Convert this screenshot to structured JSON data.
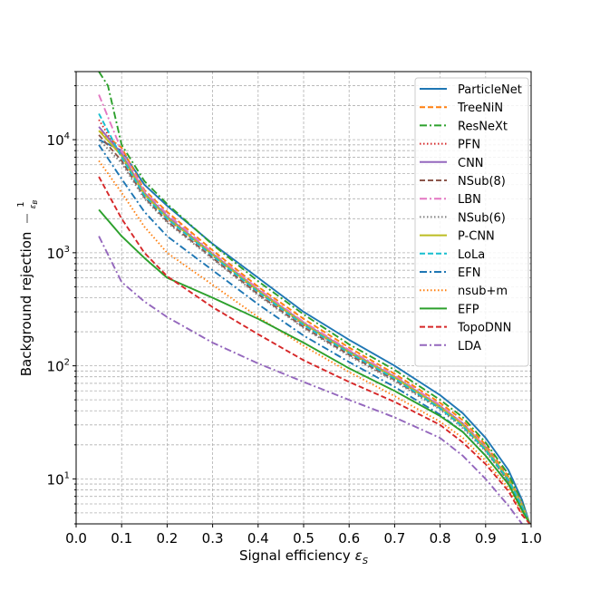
{
  "chart_data": {
    "type": "line",
    "title": "",
    "xlabel": "Signal efficiency",
    "xlabel_symbol": "εS",
    "ylabel": "Background rejection",
    "ylabel_symbol": "1/εB",
    "xlim": [
      0.0,
      1.0
    ],
    "ylim": [
      4,
      40000
    ],
    "yscale": "log",
    "grid": true,
    "legend_position": "top-right",
    "x_ticks": [
      "0.0",
      "0.1",
      "0.2",
      "0.3",
      "0.4",
      "0.5",
      "0.6",
      "0.7",
      "0.8",
      "0.9",
      "1.0"
    ],
    "y_tick_exponents": [
      "1",
      "2",
      "3",
      "4"
    ],
    "y_tick_base": "10",
    "series": [
      {
        "name": "ParticleNet",
        "color": "#1f77b4",
        "dash": "solid",
        "points": [
          [
            0.05,
            10000
          ],
          [
            0.1,
            8000
          ],
          [
            0.15,
            4000
          ],
          [
            0.2,
            2600
          ],
          [
            0.3,
            1200
          ],
          [
            0.4,
            600
          ],
          [
            0.5,
            300
          ],
          [
            0.6,
            170
          ],
          [
            0.7,
            100
          ],
          [
            0.8,
            55
          ],
          [
            0.85,
            38
          ],
          [
            0.9,
            23
          ],
          [
            0.95,
            12
          ],
          [
            0.98,
            6.5
          ],
          [
            0.997,
            4
          ]
        ]
      },
      {
        "name": "TreeNiN",
        "color": "#ff7f0e",
        "dash": "dashed",
        "points": [
          [
            0.05,
            12000
          ],
          [
            0.1,
            8500
          ],
          [
            0.15,
            3600
          ],
          [
            0.2,
            2300
          ],
          [
            0.3,
            1050
          ],
          [
            0.4,
            500
          ],
          [
            0.5,
            260
          ],
          [
            0.6,
            145
          ],
          [
            0.7,
            85
          ],
          [
            0.8,
            47
          ],
          [
            0.85,
            33
          ],
          [
            0.9,
            20
          ],
          [
            0.95,
            10.5
          ],
          [
            0.98,
            6
          ],
          [
            0.997,
            4
          ]
        ]
      },
      {
        "name": "ResNeXt",
        "color": "#2ca02c",
        "dash": "dashdot",
        "points": [
          [
            0.05,
            40000
          ],
          [
            0.07,
            30000
          ],
          [
            0.1,
            9000
          ],
          [
            0.15,
            4300
          ],
          [
            0.2,
            2700
          ],
          [
            0.3,
            1180
          ],
          [
            0.4,
            560
          ],
          [
            0.5,
            285
          ],
          [
            0.6,
            155
          ],
          [
            0.7,
            92
          ],
          [
            0.8,
            50
          ],
          [
            0.85,
            35
          ],
          [
            0.9,
            21
          ],
          [
            0.95,
            11
          ],
          [
            0.98,
            6.2
          ],
          [
            0.997,
            4
          ]
        ]
      },
      {
        "name": "PFN",
        "color": "#d62728",
        "dash": "dotted",
        "points": [
          [
            0.05,
            15000
          ],
          [
            0.1,
            7000
          ],
          [
            0.15,
            3300
          ],
          [
            0.2,
            2000
          ],
          [
            0.3,
            950
          ],
          [
            0.4,
            450
          ],
          [
            0.5,
            230
          ],
          [
            0.6,
            130
          ],
          [
            0.7,
            78
          ],
          [
            0.8,
            43
          ],
          [
            0.85,
            30
          ],
          [
            0.9,
            18
          ],
          [
            0.95,
            10
          ],
          [
            0.98,
            5.8
          ],
          [
            0.997,
            4
          ]
        ]
      },
      {
        "name": "CNN",
        "color": "#9467bd",
        "dash": "solid",
        "points": [
          [
            0.05,
            13000
          ],
          [
            0.1,
            7500
          ],
          [
            0.15,
            3400
          ],
          [
            0.2,
            2100
          ],
          [
            0.3,
            980
          ],
          [
            0.4,
            470
          ],
          [
            0.5,
            240
          ],
          [
            0.6,
            135
          ],
          [
            0.7,
            80
          ],
          [
            0.8,
            44
          ],
          [
            0.85,
            31
          ],
          [
            0.9,
            19
          ],
          [
            0.95,
            10
          ],
          [
            0.98,
            5.9
          ],
          [
            0.997,
            4
          ]
        ]
      },
      {
        "name": "NSub(8)",
        "color": "#8c564b",
        "dash": "dashed",
        "points": [
          [
            0.05,
            11000
          ],
          [
            0.1,
            6500
          ],
          [
            0.15,
            3100
          ],
          [
            0.2,
            1900
          ],
          [
            0.3,
            900
          ],
          [
            0.4,
            430
          ],
          [
            0.5,
            220
          ],
          [
            0.6,
            125
          ],
          [
            0.7,
            75
          ],
          [
            0.8,
            42
          ],
          [
            0.85,
            29
          ],
          [
            0.9,
            18
          ],
          [
            0.95,
            9.5
          ],
          [
            0.98,
            5.6
          ],
          [
            0.997,
            4
          ]
        ]
      },
      {
        "name": "LBN",
        "color": "#e377c2",
        "dash": "dashdot",
        "points": [
          [
            0.05,
            25000
          ],
          [
            0.1,
            8000
          ],
          [
            0.15,
            3500
          ],
          [
            0.2,
            2200
          ],
          [
            0.3,
            1000
          ],
          [
            0.4,
            480
          ],
          [
            0.5,
            245
          ],
          [
            0.6,
            138
          ],
          [
            0.7,
            82
          ],
          [
            0.8,
            45
          ],
          [
            0.85,
            31
          ],
          [
            0.9,
            19
          ],
          [
            0.95,
            10
          ],
          [
            0.98,
            5.9
          ],
          [
            0.997,
            4
          ]
        ]
      },
      {
        "name": "NSub(6)",
        "color": "#7f7f7f",
        "dash": "dotted",
        "points": [
          [
            0.05,
            10000
          ],
          [
            0.1,
            6200
          ],
          [
            0.15,
            3000
          ],
          [
            0.2,
            1850
          ],
          [
            0.3,
            880
          ],
          [
            0.4,
            420
          ],
          [
            0.5,
            215
          ],
          [
            0.6,
            122
          ],
          [
            0.7,
            73
          ],
          [
            0.8,
            41
          ],
          [
            0.85,
            28
          ],
          [
            0.9,
            17.5
          ],
          [
            0.95,
            9.5
          ],
          [
            0.98,
            5.5
          ],
          [
            0.997,
            4
          ]
        ]
      },
      {
        "name": "P-CNN",
        "color": "#bcbd22",
        "dash": "solid",
        "points": [
          [
            0.05,
            12000
          ],
          [
            0.1,
            7200
          ],
          [
            0.15,
            3300
          ],
          [
            0.2,
            2050
          ],
          [
            0.3,
            960
          ],
          [
            0.4,
            460
          ],
          [
            0.5,
            235
          ],
          [
            0.6,
            132
          ],
          [
            0.7,
            79
          ],
          [
            0.8,
            43
          ],
          [
            0.85,
            30
          ],
          [
            0.9,
            18.5
          ],
          [
            0.95,
            10
          ],
          [
            0.98,
            5.8
          ],
          [
            0.997,
            4
          ]
        ]
      },
      {
        "name": "LoLa",
        "color": "#17becf",
        "dash": "dashed",
        "points": [
          [
            0.05,
            17000
          ],
          [
            0.1,
            7000
          ],
          [
            0.15,
            3200
          ],
          [
            0.2,
            2000
          ],
          [
            0.3,
            940
          ],
          [
            0.4,
            450
          ],
          [
            0.5,
            230
          ],
          [
            0.6,
            130
          ],
          [
            0.7,
            77
          ],
          [
            0.8,
            42
          ],
          [
            0.85,
            29
          ],
          [
            0.9,
            18
          ],
          [
            0.95,
            9.8
          ],
          [
            0.98,
            5.7
          ],
          [
            0.997,
            4
          ]
        ]
      },
      {
        "name": "EFN",
        "color": "#1f77b4",
        "dash": "dashdot",
        "points": [
          [
            0.05,
            9000
          ],
          [
            0.1,
            4500
          ],
          [
            0.15,
            2300
          ],
          [
            0.2,
            1400
          ],
          [
            0.3,
            700
          ],
          [
            0.4,
            350
          ],
          [
            0.5,
            185
          ],
          [
            0.6,
            108
          ],
          [
            0.7,
            65
          ],
          [
            0.8,
            37
          ],
          [
            0.85,
            26
          ],
          [
            0.9,
            16
          ],
          [
            0.95,
            9
          ],
          [
            0.98,
            5.3
          ],
          [
            0.997,
            4
          ]
        ]
      },
      {
        "name": "nsub+m",
        "color": "#ff7f0e",
        "dash": "dotted",
        "points": [
          [
            0.05,
            6500
          ],
          [
            0.1,
            3400
          ],
          [
            0.15,
            1700
          ],
          [
            0.2,
            1000
          ],
          [
            0.3,
            520
          ],
          [
            0.4,
            270
          ],
          [
            0.5,
            150
          ],
          [
            0.6,
            88
          ],
          [
            0.7,
            54
          ],
          [
            0.8,
            32
          ],
          [
            0.85,
            23
          ],
          [
            0.9,
            14.5
          ],
          [
            0.95,
            8.3
          ],
          [
            0.98,
            5
          ],
          [
            0.997,
            4
          ]
        ]
      },
      {
        "name": "EFP",
        "color": "#2ca02c",
        "dash": "solid",
        "points": [
          [
            0.05,
            2400
          ],
          [
            0.1,
            1400
          ],
          [
            0.15,
            900
          ],
          [
            0.2,
            600
          ],
          [
            0.3,
            400
          ],
          [
            0.4,
            260
          ],
          [
            0.5,
            160
          ],
          [
            0.6,
            95
          ],
          [
            0.7,
            60
          ],
          [
            0.8,
            36
          ],
          [
            0.85,
            26
          ],
          [
            0.9,
            16
          ],
          [
            0.95,
            9
          ],
          [
            0.98,
            5.3
          ],
          [
            0.997,
            4
          ]
        ]
      },
      {
        "name": "TopoDNN",
        "color": "#d62728",
        "dash": "dashed",
        "points": [
          [
            0.05,
            4700
          ],
          [
            0.1,
            2000
          ],
          [
            0.15,
            1000
          ],
          [
            0.2,
            620
          ],
          [
            0.3,
            330
          ],
          [
            0.4,
            190
          ],
          [
            0.5,
            112
          ],
          [
            0.6,
            72
          ],
          [
            0.7,
            48
          ],
          [
            0.8,
            30
          ],
          [
            0.85,
            21
          ],
          [
            0.9,
            13.5
          ],
          [
            0.95,
            7.8
          ],
          [
            0.98,
            4.8
          ],
          [
            0.997,
            4
          ]
        ]
      },
      {
        "name": "LDA",
        "color": "#9467bd",
        "dash": "dashdot",
        "points": [
          [
            0.05,
            1400
          ],
          [
            0.1,
            550
          ],
          [
            0.15,
            370
          ],
          [
            0.2,
            270
          ],
          [
            0.3,
            160
          ],
          [
            0.4,
            105
          ],
          [
            0.5,
            72
          ],
          [
            0.6,
            50
          ],
          [
            0.7,
            35
          ],
          [
            0.8,
            23
          ],
          [
            0.85,
            16
          ],
          [
            0.9,
            10
          ],
          [
            0.95,
            5.8
          ],
          [
            0.98,
            4
          ]
        ]
      }
    ]
  }
}
